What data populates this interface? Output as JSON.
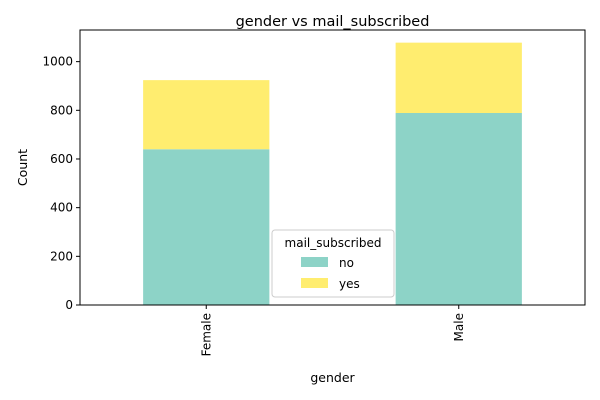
{
  "chart_data": {
    "type": "bar",
    "stacked": true,
    "title": "gender vs mail_subscribed",
    "xlabel": "gender",
    "ylabel": "Count",
    "categories": [
      "Female",
      "Male"
    ],
    "series": [
      {
        "name": "no",
        "values": [
          640,
          789
        ],
        "color": "#8dd3c7"
      },
      {
        "name": "yes",
        "values": [
          284,
          289
        ],
        "color": "#ffed6f"
      }
    ],
    "ylim": [
      0,
      1130
    ],
    "yticks": [
      0,
      200,
      400,
      600,
      800,
      1000
    ],
    "grid": false,
    "legend": {
      "title": "mail_subscribed",
      "placement": "lower-center"
    }
  }
}
